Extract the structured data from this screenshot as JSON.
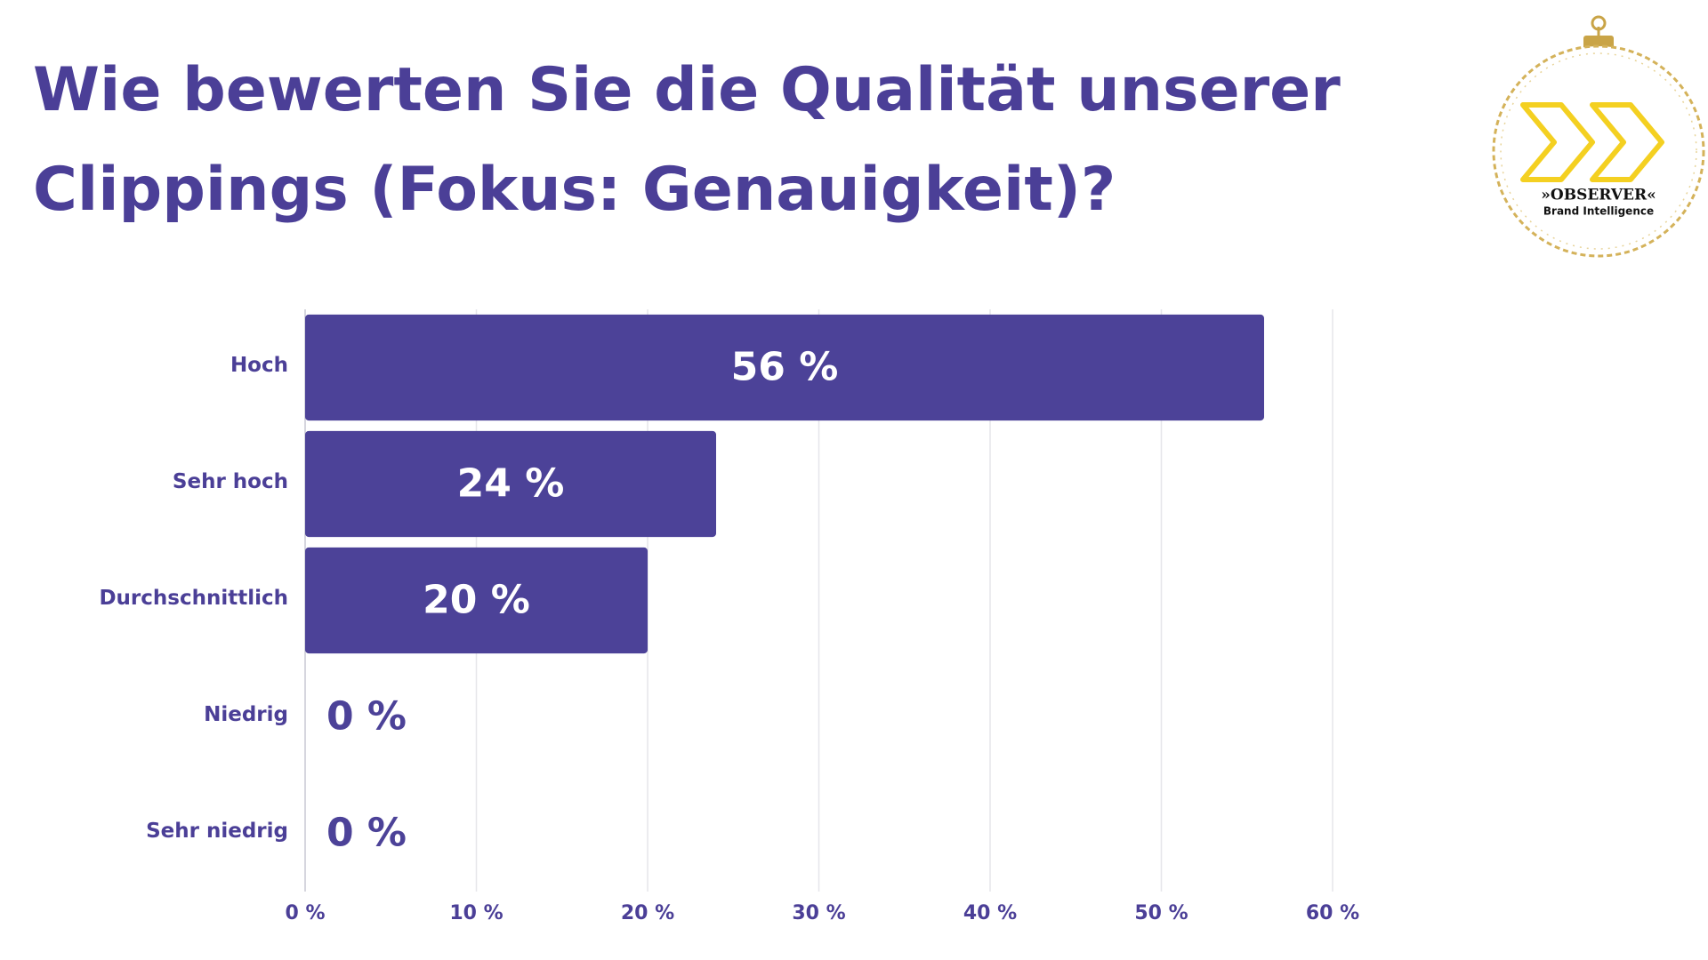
{
  "chart_data": {
    "type": "bar",
    "orientation": "horizontal",
    "title_lines": [
      "Wie bewerten Sie die Qualität unserer",
      "Clippings (Fokus: Genauigkeit)?"
    ],
    "categories": [
      "Hoch",
      "Sehr hoch",
      "Durchschnittlich",
      "Niedrig",
      "Sehr niedrig"
    ],
    "values": [
      56,
      24,
      20,
      0,
      0
    ],
    "value_labels": [
      "56 %",
      "24 %",
      "20 %",
      "0 %",
      "0 %"
    ],
    "color": "#4c4298",
    "xlim": [
      0,
      60
    ],
    "xticks": [
      {
        "value": 0,
        "label": "0 %"
      },
      {
        "value": 10,
        "label": "10 %"
      },
      {
        "value": 20,
        "label": "20 %"
      },
      {
        "value": 30,
        "label": "30 %"
      },
      {
        "value": 40,
        "label": "40 %"
      },
      {
        "value": 50,
        "label": "50 %"
      },
      {
        "value": 60,
        "label": "60 %"
      }
    ],
    "grid": true
  },
  "logo": {
    "name": "»OBSERVER«",
    "tagline": "Brand Intelligence"
  }
}
